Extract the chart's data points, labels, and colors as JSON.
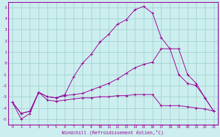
{
  "xlabel": "Windchill (Refroidissement éolien,°C)",
  "xlim": [
    -0.5,
    23.5
  ],
  "ylim": [
    -5.5,
    5.5
  ],
  "yticks": [
    -5,
    -4,
    -3,
    -2,
    -1,
    0,
    1,
    2,
    3,
    4,
    5
  ],
  "xticks": [
    0,
    1,
    2,
    3,
    4,
    5,
    6,
    7,
    8,
    9,
    10,
    11,
    12,
    13,
    14,
    15,
    16,
    17,
    18,
    19,
    20,
    21,
    22,
    23
  ],
  "color": "#990099",
  "bg_color": "#cceeee",
  "grid_color": "#99cccc",
  "lines": [
    {
      "x": [
        0,
        1,
        2,
        3,
        4,
        5,
        6,
        7,
        8,
        9,
        10,
        11,
        12,
        13,
        14,
        15,
        16,
        17,
        18,
        19,
        20,
        21,
        22,
        23
      ],
      "y": [
        -3.5,
        -5.0,
        -4.5,
        -2.6,
        -3.0,
        -3.1,
        -2.8,
        -1.2,
        0.0,
        0.8,
        1.9,
        2.6,
        3.5,
        3.9,
        4.8,
        5.1,
        4.5,
        2.3,
        1.3,
        1.3,
        -1.0,
        -1.8,
        -3.1,
        -4.3
      ]
    },
    {
      "x": [
        0,
        1,
        2,
        3,
        4,
        5,
        6,
        7,
        8,
        9,
        10,
        11,
        12,
        13,
        14,
        15,
        16,
        17,
        18,
        19,
        20,
        21,
        22,
        23
      ],
      "y": [
        -3.5,
        -4.5,
        -4.3,
        -2.6,
        -3.0,
        -3.1,
        -2.9,
        -2.8,
        -2.7,
        -2.4,
        -2.1,
        -1.8,
        -1.4,
        -0.9,
        -0.4,
        -0.1,
        0.1,
        1.3,
        1.3,
        -1.0,
        -1.8,
        -2.0,
        -3.1,
        -4.3
      ]
    },
    {
      "x": [
        0,
        1,
        2,
        3,
        4,
        5,
        6,
        7,
        8,
        9,
        10,
        11,
        12,
        13,
        14,
        15,
        16,
        17,
        18,
        19,
        20,
        21,
        22,
        23
      ],
      "y": [
        -3.5,
        -4.5,
        -4.3,
        -2.6,
        -3.3,
        -3.4,
        -3.3,
        -3.2,
        -3.1,
        -3.1,
        -3.0,
        -3.0,
        -2.9,
        -2.9,
        -2.8,
        -2.8,
        -2.8,
        -3.8,
        -3.8,
        -3.8,
        -3.9,
        -4.0,
        -4.1,
        -4.3
      ]
    }
  ]
}
